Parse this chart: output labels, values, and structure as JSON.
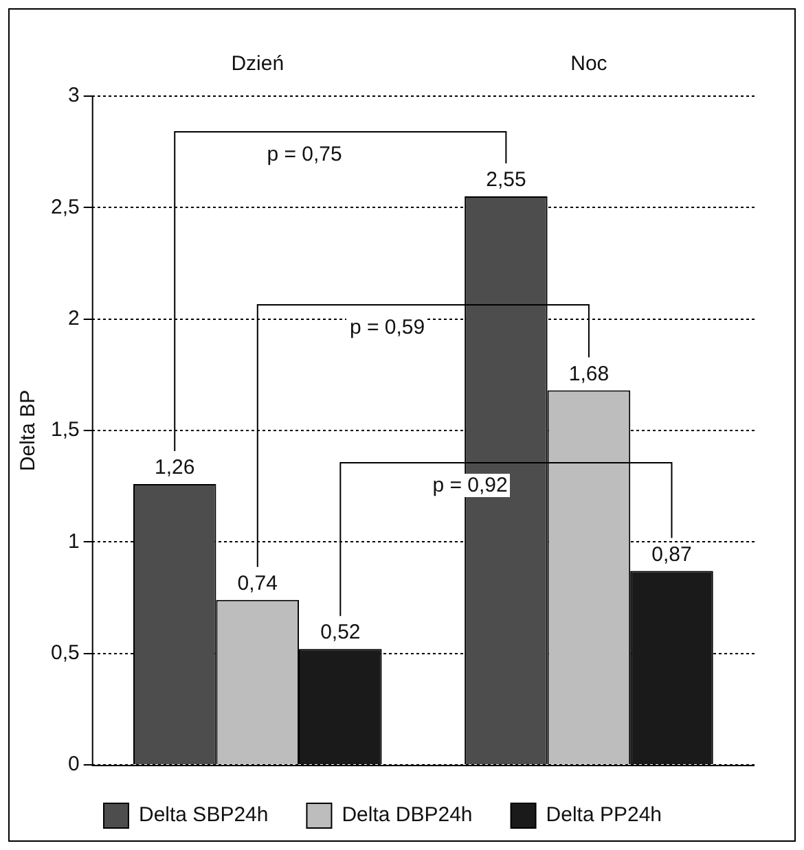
{
  "chart_data": {
    "type": "bar",
    "ylabel": "Delta BP",
    "categories": [
      "Dzień",
      "Noc"
    ],
    "series": [
      {
        "name": "Delta SBP24h",
        "color": "#4d4d4d",
        "values": [
          1.26,
          2.55
        ],
        "value_labels": [
          "1,26",
          "2,55"
        ]
      },
      {
        "name": "Delta DBP24h",
        "color": "#bdbdbd",
        "values": [
          0.74,
          1.68
        ],
        "value_labels": [
          "0,74",
          "1,68"
        ]
      },
      {
        "name": "Delta PP24h",
        "color": "#1a1a1a",
        "values": [
          0.52,
          0.87
        ],
        "value_labels": [
          "0,52",
          "0,87"
        ]
      }
    ],
    "ylim": [
      0,
      3
    ],
    "yticks": [
      0,
      {
        "value": 0.5,
        "label": "0,5"
      },
      1,
      {
        "value": 1.5,
        "label": "1,5"
      },
      2,
      {
        "value": 2.5,
        "label": "2,5"
      },
      3
    ],
    "grid": "y",
    "legend": "bottom",
    "annotations": [
      "p = 0,75",
      "p = 0,59",
      "p = 0,92"
    ]
  }
}
